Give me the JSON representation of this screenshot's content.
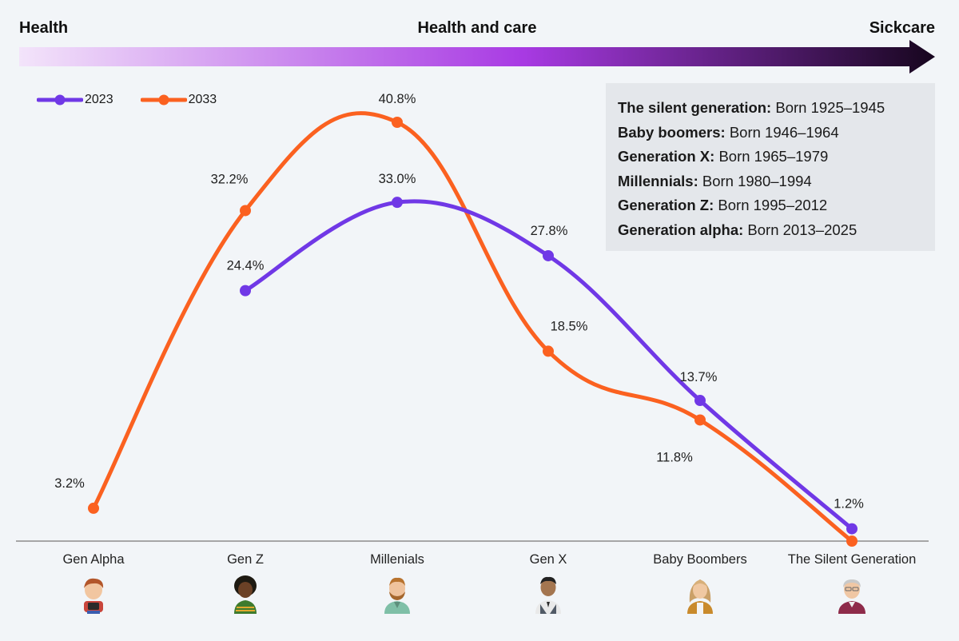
{
  "spectrum": {
    "left": "Health",
    "middle": "Health and care",
    "right": "Sickcare",
    "gradient": [
      "#f3e4fa",
      "#a83ae3",
      "#17061e"
    ]
  },
  "legend": [
    {
      "name": "2023",
      "color": "#7038e6"
    },
    {
      "name": "2033",
      "color": "#fb6120"
    }
  ],
  "generations": [
    {
      "name": "The silent generation:",
      "years": "Born 1925–1945"
    },
    {
      "name": "Baby boomers:",
      "years": "Born 1946–1964"
    },
    {
      "name": "Generation X:",
      "years": "Born 1965–1979"
    },
    {
      "name": "Millennials:",
      "years": "Born 1980–1994"
    },
    {
      "name": "Generation Z:",
      "years": "Born 1995–2012"
    },
    {
      "name": "Generation alpha:",
      "years": "Born 2013–2025"
    }
  ],
  "chart_data": {
    "type": "line",
    "categories": [
      "Gen Alpha",
      "Gen Z",
      "Millenials",
      "Gen X",
      "Baby Boombers",
      "The Silent Generation"
    ],
    "series": [
      {
        "name": "2023",
        "color": "#7038e6",
        "values": [
          null,
          24.4,
          33.0,
          27.8,
          13.7,
          1.2
        ],
        "labels": [
          null,
          "24.4%",
          "33.0%",
          "27.8%",
          "13.7%",
          "1.2%"
        ]
      },
      {
        "name": "2033",
        "color": "#fb6120",
        "values": [
          3.2,
          32.2,
          40.8,
          18.5,
          11.8,
          0
        ],
        "labels": [
          "3.2%",
          "32.2%",
          "40.8%",
          "18.5%",
          "11.8%",
          null
        ]
      }
    ],
    "ylim": [
      0,
      46
    ],
    "grid": false,
    "legend_position": "top-left",
    "avatars": [
      "child-avatar",
      "young-woman-avatar",
      "bearded-man-avatar",
      "man-vest-avatar",
      "woman-blonde-avatar",
      "elderly-man-avatar"
    ]
  }
}
